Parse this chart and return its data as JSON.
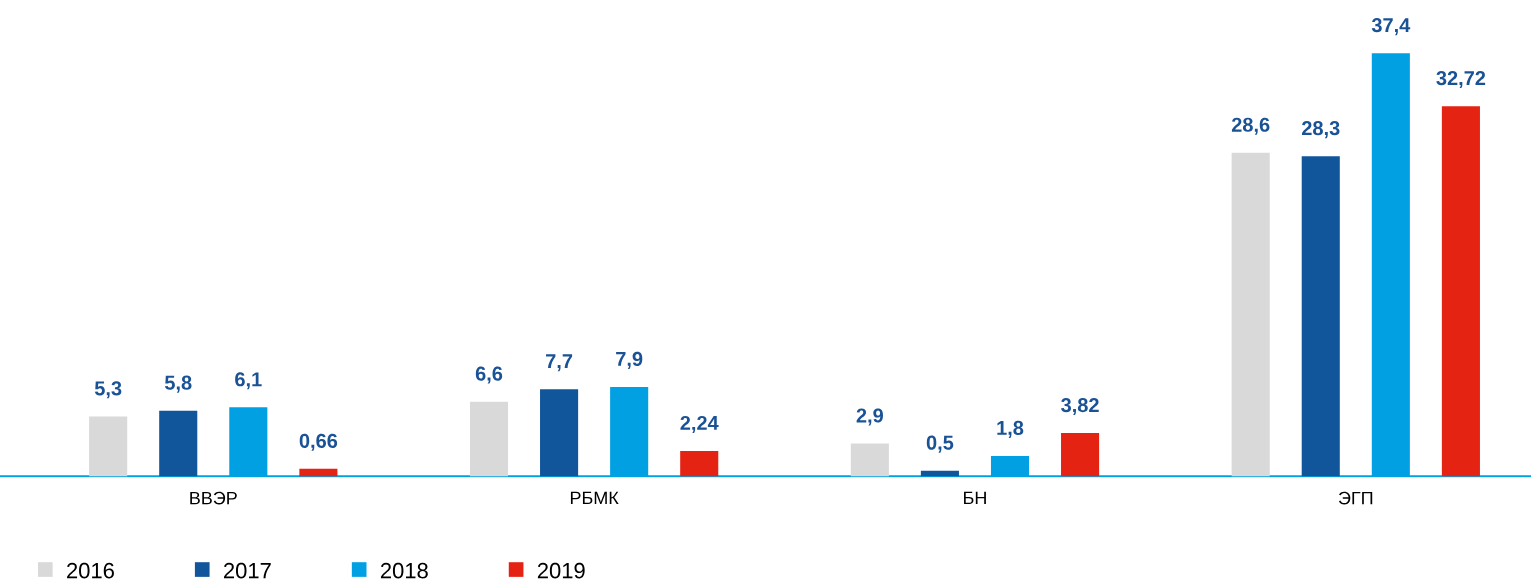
{
  "chart_data": {
    "type": "bar",
    "categories": [
      "ВВЭР",
      "РБМК",
      "БН",
      "ЭГП"
    ],
    "series": [
      {
        "name": "2016",
        "color": "#d9d9d9",
        "values": [
          5.3,
          6.6,
          2.9,
          28.6
        ],
        "value_labels": [
          "5,3",
          "6,6",
          "2,9",
          "28,6"
        ]
      },
      {
        "name": "2017",
        "color": "#11559b",
        "values": [
          5.8,
          7.7,
          0.5,
          28.3
        ],
        "value_labels": [
          "5,8",
          "7,7",
          "0,5",
          "28,3"
        ]
      },
      {
        "name": "2018",
        "color": "#00a0e3",
        "values": [
          6.1,
          7.9,
          1.8,
          37.4
        ],
        "value_labels": [
          "6,1",
          "7,9",
          "1,8",
          "37,4"
        ]
      },
      {
        "name": "2019",
        "color": "#e42313",
        "values": [
          0.66,
          2.24,
          3.82,
          32.72
        ],
        "value_labels": [
          "0,66",
          "2,24",
          "3,82",
          "32,72"
        ]
      }
    ],
    "legend": "bottom left"
  }
}
